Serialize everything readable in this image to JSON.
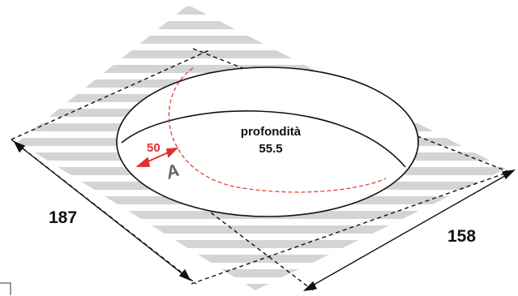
{
  "diagram": {
    "depth_label": "profondità",
    "depth_value": "55.5",
    "width_value": "187",
    "length_value": "158",
    "rim_value": "50",
    "marker_letter": "A"
  },
  "colors": {
    "stripes": "#d4d4d4",
    "outline": "#111111",
    "dash": "#111111",
    "accent": "#e0302c"
  }
}
